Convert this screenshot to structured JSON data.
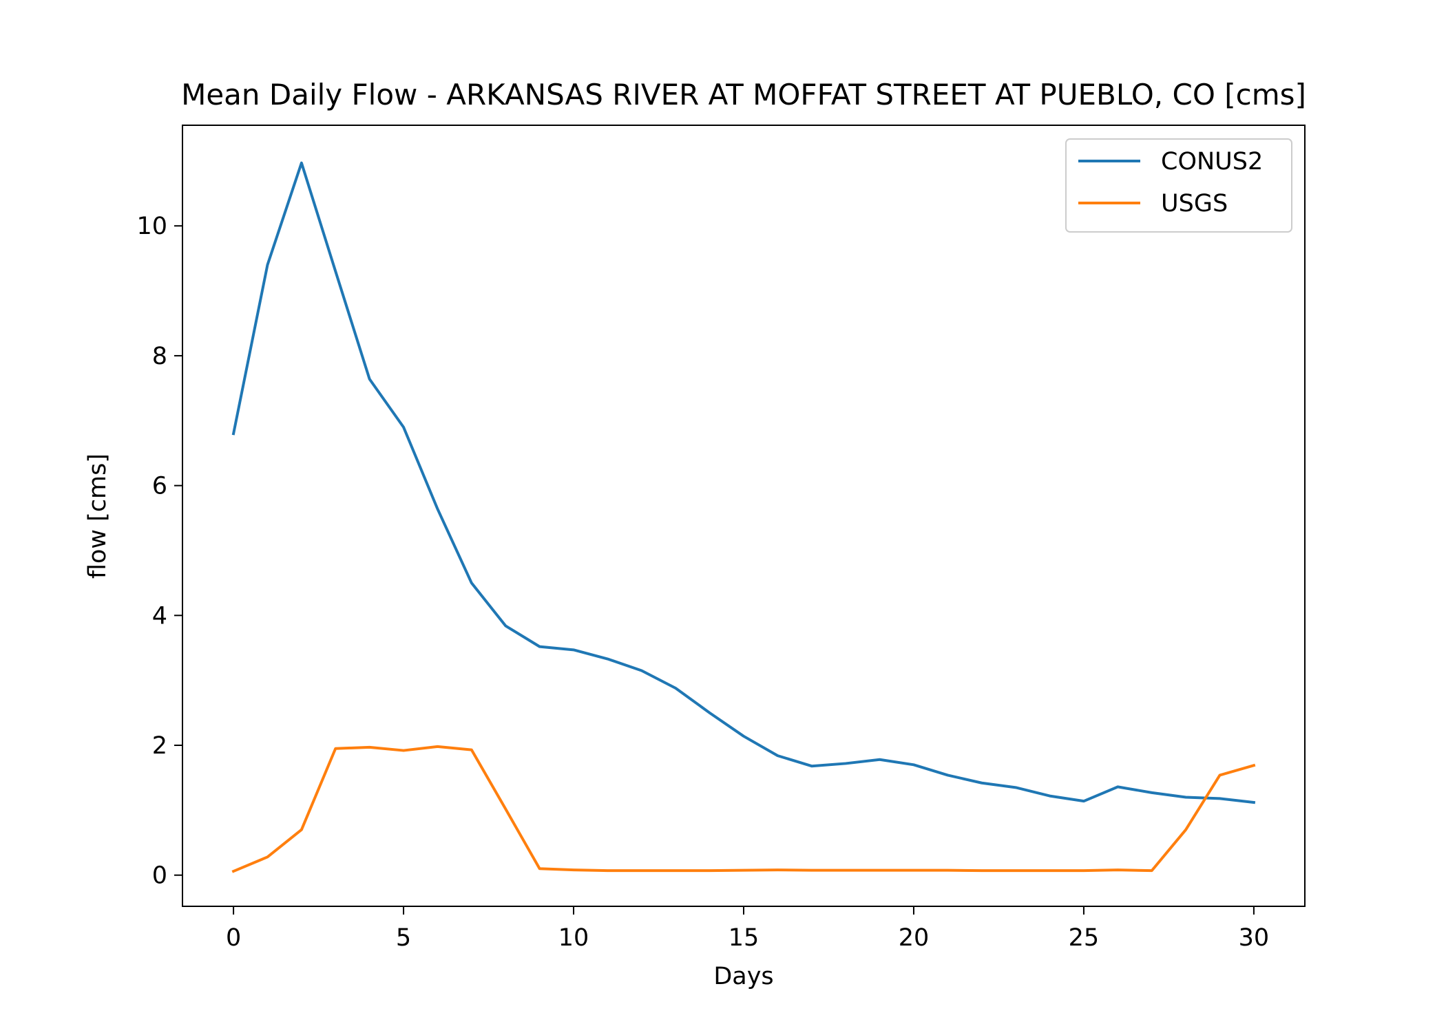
{
  "chart_data": {
    "type": "line",
    "title": "Mean Daily Flow - ARKANSAS RIVER AT MOFFAT STREET AT PUEBLO, CO [cms]",
    "xlabel": "Days",
    "ylabel": "flow [cms]",
    "xlim": [
      -1.5,
      31.5
    ],
    "ylim": [
      -0.48,
      11.55
    ],
    "xticks": [
      0,
      5,
      10,
      15,
      20,
      25,
      30
    ],
    "yticks": [
      0,
      2,
      4,
      6,
      8,
      10
    ],
    "grid": false,
    "legend_position": "top-right",
    "x": [
      0,
      1,
      2,
      3,
      4,
      5,
      6,
      7,
      8,
      9,
      10,
      11,
      12,
      13,
      14,
      15,
      16,
      17,
      18,
      19,
      20,
      21,
      22,
      23,
      24,
      25,
      26,
      27,
      28,
      29,
      30
    ],
    "series": [
      {
        "name": "CONUS2",
        "color": "#1f77b4",
        "values": [
          6.8,
          9.4,
          10.97,
          9.3,
          7.64,
          6.9,
          5.64,
          4.5,
          3.84,
          3.52,
          3.47,
          3.33,
          3.15,
          2.88,
          2.5,
          2.14,
          1.84,
          1.68,
          1.72,
          1.78,
          1.7,
          1.54,
          1.42,
          1.35,
          1.22,
          1.14,
          1.36,
          1.27,
          1.2,
          1.18,
          1.12
        ]
      },
      {
        "name": "USGS",
        "color": "#ff7f0e",
        "values": [
          0.06,
          0.28,
          0.7,
          1.95,
          1.97,
          1.92,
          1.98,
          1.93,
          1.02,
          0.1,
          0.08,
          0.07,
          0.07,
          0.07,
          0.07,
          0.075,
          0.08,
          0.075,
          0.075,
          0.075,
          0.075,
          0.075,
          0.07,
          0.07,
          0.07,
          0.07,
          0.08,
          0.07,
          0.7,
          1.54,
          1.69
        ]
      }
    ]
  }
}
